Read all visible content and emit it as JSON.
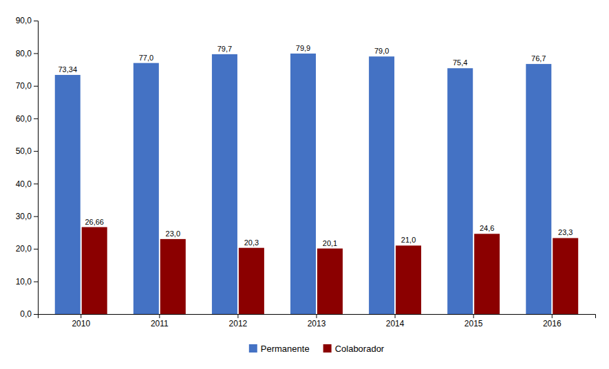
{
  "chart_data": {
    "type": "bar",
    "categories": [
      "2010",
      "2011",
      "2012",
      "2013",
      "2014",
      "2015",
      "2016"
    ],
    "series": [
      {
        "name": "Permanente",
        "color": "#4472C4",
        "values": [
          73.34,
          77.0,
          79.7,
          79.9,
          79.0,
          75.4,
          76.7
        ],
        "value_labels": [
          "73,34",
          "77,0",
          "79,7",
          "79,9",
          "79,0",
          "75,4",
          "76,7"
        ]
      },
      {
        "name": "Colaborador",
        "color": "#8B0000",
        "values": [
          26.66,
          23.0,
          20.3,
          20.1,
          21.0,
          24.6,
          23.3
        ],
        "value_labels": [
          "26,66",
          "23,0",
          "20,3",
          "20,1",
          "21,0",
          "24,6",
          "23,3"
        ]
      }
    ],
    "ylim": [
      0,
      90
    ],
    "yticks": [
      {
        "value": 0.0,
        "label": "0,0"
      },
      {
        "value": 10.0,
        "label": "10,0"
      },
      {
        "value": 20.0,
        "label": "20,0"
      },
      {
        "value": 30.0,
        "label": "30,0"
      },
      {
        "value": 40.0,
        "label": "40,0"
      },
      {
        "value": 50.0,
        "label": "50,0"
      },
      {
        "value": 60.0,
        "label": "60,0"
      },
      {
        "value": 70.0,
        "label": "70,0"
      },
      {
        "value": 80.0,
        "label": "80,0"
      },
      {
        "value": 90.0,
        "label": "90,0"
      }
    ],
    "grid": false,
    "legend": "bottom",
    "data_labels": true
  }
}
